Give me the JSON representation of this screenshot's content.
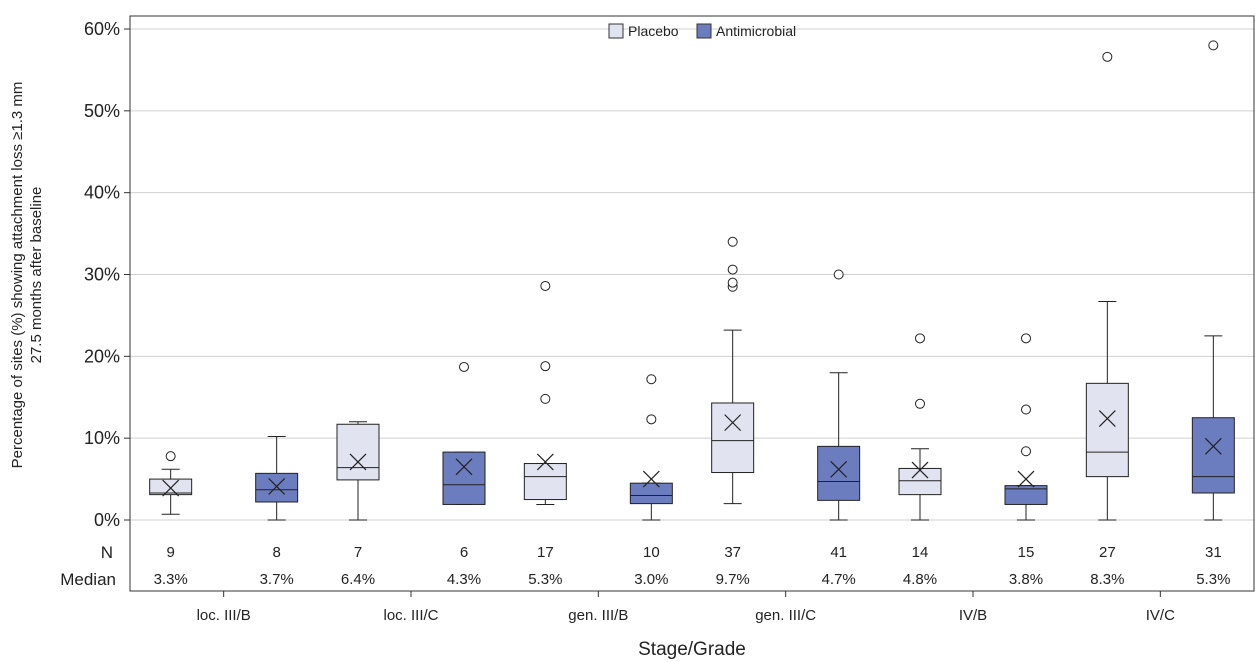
{
  "chart_data": {
    "type": "boxplot",
    "title": "",
    "xlabel": "Stage/Grade",
    "ylabel_line1": "Percentage of sites (%) showing attachment loss ≥1.3 mm",
    "ylabel_line2": "27.5 months after baseline",
    "ylim": [
      0,
      61
    ],
    "yticks": [
      {
        "value": 0,
        "label": "0%"
      },
      {
        "value": 10,
        "label": "10%"
      },
      {
        "value": 20,
        "label": "20%"
      },
      {
        "value": 30,
        "label": "30%"
      },
      {
        "value": 40,
        "label": "40%"
      },
      {
        "value": 50,
        "label": "50%"
      },
      {
        "value": 60,
        "label": "60%"
      }
    ],
    "grid": true,
    "legend_position": "top-center",
    "categories": [
      "loc. III/B",
      "loc. III/C",
      "gen. III/B",
      "gen. III/C",
      "IV/B",
      "IV/C"
    ],
    "table_row_labels": {
      "n": "N",
      "median": "Median"
    },
    "series": [
      {
        "name": "Placebo",
        "color": "#e2e3f0",
        "boxes": [
          {
            "min": 0.7,
            "q1": 3.1,
            "median": 3.3,
            "q3": 5.0,
            "max": 6.2,
            "mean": 3.9,
            "outliers": [
              7.8
            ],
            "n": "9",
            "median_label": "3.3%"
          },
          {
            "min": 0.0,
            "q1": 4.9,
            "median": 6.4,
            "q3": 11.7,
            "max": 12.0,
            "mean": 7.1,
            "outliers": [],
            "n": "7",
            "median_label": "6.4%"
          },
          {
            "min": 1.9,
            "q1": 2.5,
            "median": 5.3,
            "q3": 6.9,
            "max": 6.9,
            "mean": 7.1,
            "outliers": [
              14.8,
              18.8,
              28.6
            ],
            "n": "17",
            "median_label": "5.3%"
          },
          {
            "min": 2.0,
            "q1": 5.8,
            "median": 9.7,
            "q3": 14.3,
            "max": 23.2,
            "mean": 11.9,
            "outliers": [
              28.5,
              29.0,
              30.6,
              34.0
            ],
            "n": "37",
            "median_label": "9.7%"
          },
          {
            "min": 0.0,
            "q1": 3.1,
            "median": 4.8,
            "q3": 6.3,
            "max": 8.7,
            "mean": 6.1,
            "outliers": [
              14.2,
              22.2
            ],
            "n": "14",
            "median_label": "4.8%"
          },
          {
            "min": 0.0,
            "q1": 5.3,
            "median": 8.3,
            "q3": 16.7,
            "max": 26.7,
            "mean": 12.4,
            "outliers": [
              56.6
            ],
            "n": "27",
            "median_label": "8.3%"
          }
        ]
      },
      {
        "name": "Antimicrobial",
        "color": "#6c7dbf",
        "boxes": [
          {
            "min": 0.0,
            "q1": 2.2,
            "median": 3.7,
            "q3": 5.7,
            "max": 10.2,
            "mean": 4.1,
            "outliers": [],
            "n": "8",
            "median_label": "3.7%"
          },
          {
            "min": 1.9,
            "q1": 1.9,
            "median": 4.3,
            "q3": 8.3,
            "max": 8.3,
            "mean": 6.5,
            "outliers": [
              18.7
            ],
            "n": "6",
            "median_label": "4.3%"
          },
          {
            "min": 0.0,
            "q1": 2.0,
            "median": 3.0,
            "q3": 4.5,
            "max": 4.5,
            "mean": 5.0,
            "outliers": [
              12.3,
              17.2
            ],
            "n": "10",
            "median_label": "3.0%"
          },
          {
            "min": 0.0,
            "q1": 2.4,
            "median": 4.7,
            "q3": 9.0,
            "max": 18.0,
            "mean": 6.2,
            "outliers": [
              30.0
            ],
            "n": "41",
            "median_label": "4.7%"
          },
          {
            "min": 0.0,
            "q1": 1.9,
            "median": 3.8,
            "q3": 4.2,
            "max": 4.2,
            "mean": 5.0,
            "outliers": [
              8.4,
              13.5,
              22.2
            ],
            "n": "15",
            "median_label": "3.8%"
          },
          {
            "min": 0.0,
            "q1": 3.3,
            "median": 5.3,
            "q3": 12.5,
            "max": 22.5,
            "mean": 9.0,
            "outliers": [
              58.0
            ],
            "n": "31",
            "median_label": "5.3%"
          }
        ]
      }
    ]
  }
}
